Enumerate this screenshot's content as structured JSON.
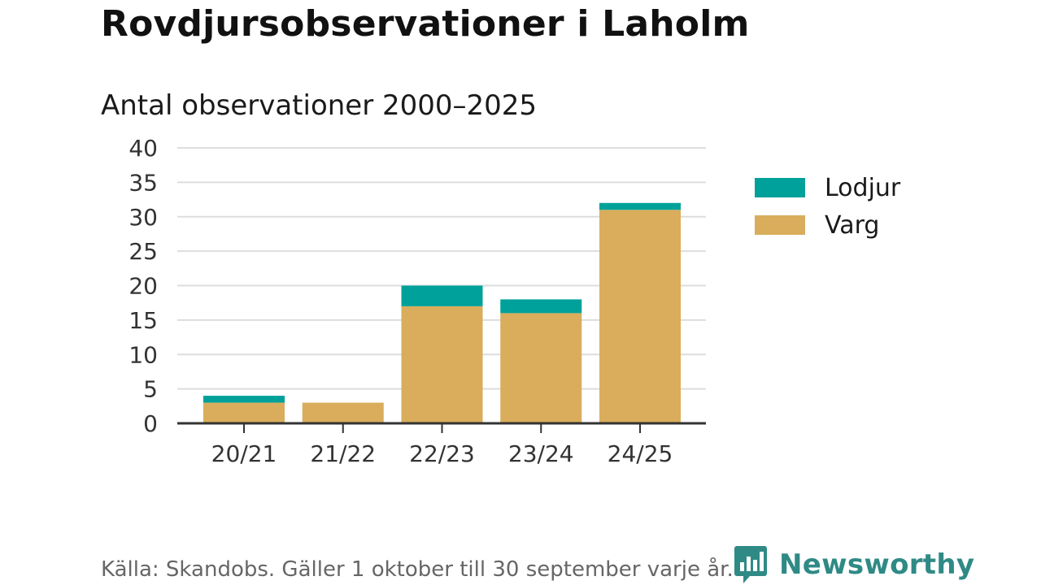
{
  "colors": {
    "lodjur": "#00a19a",
    "varg": "#d9ad5b",
    "brand": "#2f8a86",
    "grid": "#dddddd",
    "axis": "#333333"
  },
  "chart_data": {
    "type": "bar",
    "stacked": true,
    "title": "Rovdjursobservationer i Laholm",
    "subtitle": "Antal observationer 2000–2025",
    "categories": [
      "20/21",
      "21/22",
      "22/23",
      "23/24",
      "24/25"
    ],
    "series": [
      {
        "name": "Varg",
        "values": [
          3,
          3,
          17,
          16,
          31
        ]
      },
      {
        "name": "Lodjur",
        "values": [
          1,
          0,
          3,
          2,
          1
        ]
      }
    ],
    "ylim": [
      0,
      40
    ],
    "yticks": [
      0,
      5,
      10,
      15,
      20,
      25,
      30,
      35,
      40
    ],
    "xlabel": "",
    "ylabel": "",
    "grid": true,
    "legend": [
      "Lodjur",
      "Varg"
    ],
    "legend_position": "right"
  },
  "footer": {
    "source": "Källa: Skandobs. Gäller 1 oktober till 30 september varje år.",
    "brand": "Newsworthy",
    "brand_icon": "bar-chart-speech-bubble-icon"
  }
}
